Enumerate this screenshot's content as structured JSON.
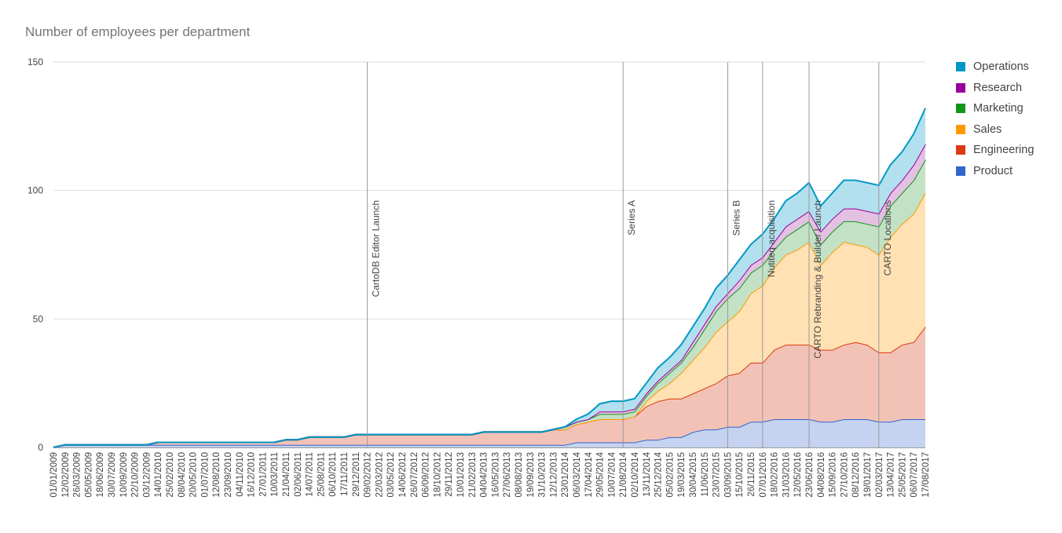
{
  "chart_data": {
    "type": "area",
    "stacked": true,
    "title": "Number of employees per department",
    "xlabel": "",
    "ylabel": "",
    "ylim": [
      0,
      150
    ],
    "yticks": [
      0,
      50,
      100,
      150
    ],
    "grid": true,
    "legend_position": "right",
    "x_ticks": [
      "01/01/2009",
      "12/02/2009",
      "26/03/2009",
      "05/05/2009",
      "18/06/2009",
      "30/07/2009",
      "10/09/2009",
      "22/10/2009",
      "03/12/2009",
      "14/01/2010",
      "25/02/2010",
      "08/04/2010",
      "20/05/2010",
      "01/07/2010",
      "12/08/2010",
      "23/09/2010",
      "04/11/2010",
      "16/12/2010",
      "27/01/2011",
      "10/03/2011",
      "21/04/2011",
      "02/06/2011",
      "14/07/2011",
      "25/08/2011",
      "06/10/2011",
      "17/11/2011",
      "29/12/2011",
      "09/02/2012",
      "22/03/2012",
      "03/05/2012",
      "14/06/2012",
      "26/07/2012",
      "06/09/2012",
      "18/10/2012",
      "29/11/2012",
      "10/01/2013",
      "21/02/2013",
      "04/04/2013",
      "16/05/2013",
      "27/06/2013",
      "08/08/2013",
      "19/09/2013",
      "31/10/2013",
      "12/12/2013",
      "23/01/2014",
      "06/03/2014",
      "17/04/2014",
      "29/05/2014",
      "10/07/2014",
      "21/08/2014",
      "02/10/2014",
      "13/11/2014",
      "25/12/2014",
      "05/02/2015",
      "19/03/2015",
      "30/04/2015",
      "11/06/2015",
      "23/07/2015",
      "03/09/2015",
      "15/10/2015",
      "26/11/2015",
      "07/01/2016",
      "18/02/2016",
      "31/03/2016",
      "12/05/2016",
      "23/06/2016",
      "04/08/2016",
      "15/09/2016",
      "27/10/2016",
      "08/12/2016",
      "19/01/2017",
      "02/03/2017",
      "13/04/2017",
      "25/05/2017",
      "06/07/2017",
      "17/08/2017"
    ],
    "annotations": [
      {
        "label": "CartoDB Editor Launch",
        "x": "09/02/2012"
      },
      {
        "label": "Series A",
        "x": "21/08/2014"
      },
      {
        "label": "Series B",
        "x": "03/09/2015"
      },
      {
        "label": "Nutiteq acquisition",
        "x": "07/01/2016"
      },
      {
        "label": "CARTO Rebranding & Builder Launch",
        "x": "23/06/2016"
      },
      {
        "label": "CARTO Locations",
        "x": "02/03/2017"
      }
    ],
    "x": [
      "01/01/2009",
      "12/02/2009",
      "26/03/2009",
      "05/05/2009",
      "18/06/2009",
      "30/07/2009",
      "10/09/2009",
      "22/10/2009",
      "03/12/2009",
      "14/01/2010",
      "25/02/2010",
      "08/04/2010",
      "20/05/2010",
      "01/07/2010",
      "12/08/2010",
      "23/09/2010",
      "04/11/2010",
      "16/12/2010",
      "27/01/2011",
      "10/03/2011",
      "21/04/2011",
      "02/06/2011",
      "14/07/2011",
      "25/08/2011",
      "06/10/2011",
      "17/11/2011",
      "29/12/2011",
      "09/02/2012",
      "22/03/2012",
      "03/05/2012",
      "14/06/2012",
      "26/07/2012",
      "06/09/2012",
      "18/10/2012",
      "29/11/2012",
      "10/01/2013",
      "21/02/2013",
      "04/04/2013",
      "16/05/2013",
      "27/06/2013",
      "08/08/2013",
      "19/09/2013",
      "31/10/2013",
      "12/12/2013",
      "23/01/2014",
      "06/03/2014",
      "17/04/2014",
      "29/05/2014",
      "10/07/2014",
      "21/08/2014",
      "02/10/2014",
      "13/11/2014",
      "25/12/2014",
      "05/02/2015",
      "19/03/2015",
      "30/04/2015",
      "11/06/2015",
      "23/07/2015",
      "03/09/2015",
      "15/10/2015",
      "26/11/2015",
      "07/01/2016",
      "18/02/2016",
      "31/03/2016",
      "12/05/2016",
      "23/06/2016",
      "04/08/2016",
      "15/09/2016",
      "27/10/2016",
      "08/12/2016",
      "19/01/2017",
      "02/03/2017",
      "13/04/2017",
      "25/05/2017",
      "06/07/2017",
      "17/08/2017"
    ],
    "series": [
      {
        "name": "Product",
        "color": "#3366cc",
        "fill": "#c5d3f0",
        "values": [
          0,
          1,
          1,
          1,
          1,
          1,
          1,
          1,
          1,
          1,
          1,
          1,
          1,
          1,
          1,
          1,
          1,
          1,
          1,
          1,
          1,
          1,
          1,
          1,
          1,
          1,
          1,
          1,
          1,
          1,
          1,
          1,
          1,
          1,
          1,
          1,
          1,
          1,
          1,
          1,
          1,
          1,
          1,
          1,
          1,
          2,
          2,
          2,
          2,
          2,
          2,
          3,
          3,
          4,
          4,
          6,
          7,
          7,
          8,
          8,
          10,
          10,
          11,
          11,
          11,
          11,
          10,
          10,
          11,
          11,
          11,
          10,
          10,
          11,
          11,
          11
        ]
      },
      {
        "name": "Engineering",
        "color": "#dc3912",
        "fill": "#f3c2b6",
        "values": [
          0,
          0,
          0,
          0,
          0,
          0,
          0,
          0,
          0,
          1,
          1,
          1,
          1,
          1,
          1,
          1,
          1,
          1,
          1,
          1,
          2,
          2,
          3,
          3,
          3,
          3,
          4,
          4,
          4,
          4,
          4,
          4,
          4,
          4,
          4,
          4,
          4,
          5,
          5,
          5,
          5,
          5,
          5,
          6,
          6,
          7,
          8,
          9,
          9,
          9,
          10,
          13,
          15,
          15,
          15,
          15,
          16,
          18,
          20,
          21,
          23,
          23,
          27,
          29,
          29,
          29,
          28,
          28,
          29,
          30,
          29,
          27,
          27,
          29,
          30,
          36
        ]
      },
      {
        "name": "Sales",
        "color": "#ff9900",
        "fill": "#ffe1b3",
        "values": [
          0,
          0,
          0,
          0,
          0,
          0,
          0,
          0,
          0,
          0,
          0,
          0,
          0,
          0,
          0,
          0,
          0,
          0,
          0,
          0,
          0,
          0,
          0,
          0,
          0,
          0,
          0,
          0,
          0,
          0,
          0,
          0,
          0,
          0,
          0,
          0,
          0,
          0,
          0,
          0,
          0,
          0,
          0,
          0,
          0,
          0,
          0,
          0,
          0,
          0,
          0,
          2,
          4,
          6,
          10,
          13,
          16,
          20,
          21,
          24,
          27,
          30,
          32,
          35,
          37,
          40,
          33,
          38,
          40,
          38,
          38,
          38,
          45,
          47,
          50,
          52
        ]
      },
      {
        "name": "Marketing",
        "color": "#109618",
        "fill": "#c3e1c5",
        "values": [
          0,
          0,
          0,
          0,
          0,
          0,
          0,
          0,
          0,
          0,
          0,
          0,
          0,
          0,
          0,
          0,
          0,
          0,
          0,
          0,
          0,
          0,
          0,
          0,
          0,
          0,
          0,
          0,
          0,
          0,
          0,
          0,
          0,
          0,
          0,
          0,
          0,
          0,
          0,
          0,
          0,
          0,
          0,
          0,
          1,
          1,
          1,
          2,
          2,
          2,
          2,
          2,
          3,
          4,
          4,
          5,
          7,
          8,
          9,
          9,
          8,
          8,
          7,
          7,
          8,
          8,
          8,
          8,
          8,
          9,
          9,
          11,
          12,
          12,
          13,
          13
        ]
      },
      {
        "name": "Research",
        "color": "#990099",
        "fill": "#e3c1e3",
        "values": [
          0,
          0,
          0,
          0,
          0,
          0,
          0,
          0,
          0,
          0,
          0,
          0,
          0,
          0,
          0,
          0,
          0,
          0,
          0,
          0,
          0,
          0,
          0,
          0,
          0,
          0,
          0,
          0,
          0,
          0,
          0,
          0,
          0,
          0,
          0,
          0,
          0,
          0,
          0,
          0,
          0,
          0,
          0,
          0,
          0,
          0,
          0,
          1,
          1,
          1,
          1,
          1,
          1,
          1,
          1,
          2,
          2,
          2,
          2,
          3,
          3,
          3,
          3,
          4,
          4,
          4,
          5,
          5,
          5,
          5,
          5,
          5,
          5,
          5,
          6,
          6
        ]
      },
      {
        "name": "Operations",
        "color": "#0099c6",
        "fill": "#b3e0ee",
        "values": [
          0,
          0,
          0,
          0,
          0,
          0,
          0,
          0,
          0,
          0,
          0,
          0,
          0,
          0,
          0,
          0,
          0,
          0,
          0,
          0,
          0,
          0,
          0,
          0,
          0,
          0,
          0,
          0,
          0,
          0,
          0,
          0,
          0,
          0,
          0,
          0,
          0,
          0,
          0,
          0,
          0,
          0,
          0,
          0,
          0,
          1,
          2,
          3,
          4,
          4,
          4,
          4,
          5,
          5,
          6,
          6,
          6,
          7,
          7,
          8,
          8,
          9,
          9,
          10,
          10,
          11,
          10,
          10,
          11,
          11,
          11,
          11,
          11,
          11,
          12,
          14
        ]
      }
    ]
  }
}
